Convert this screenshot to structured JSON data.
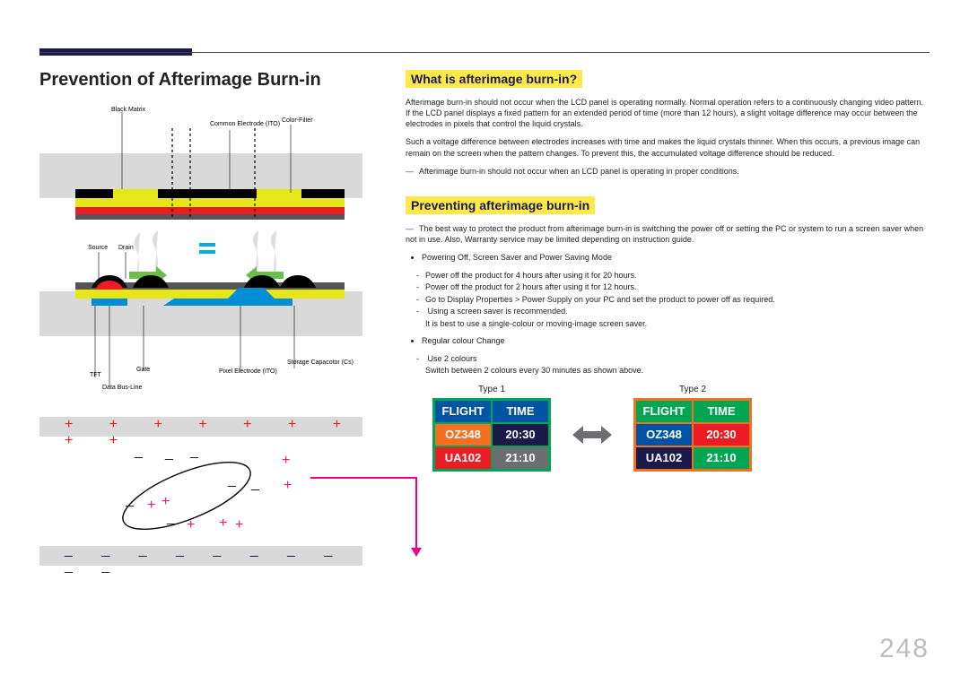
{
  "page_number": "248",
  "title": "Prevention of Afterimage Burn-in",
  "section1": {
    "heading": "What is afterimage burn-in?",
    "para1": "Afterimage burn-in should not occur when the LCD panel is operating normally. Normal operation refers to a continuously changing video pattern. If the LCD panel displays a fixed pattern for an extended period of time (more than 12 hours), a slight voltage difference may occur between the electrodes in pixels that control the liquid crystals.",
    "para2": "Such a voltage difference between electrodes increases with time and makes the liquid crystals thinner. When this occurs, a previous image can remain on the screen when the pattern changes. To prevent this, the accumulated voltage difference should be reduced.",
    "dash1": "Afterimage burn-in should not occur when an LCD panel is operating in proper conditions."
  },
  "section2": {
    "heading": "Preventing afterimage burn-in",
    "dash1": "The best way to protect the product from afterimage burn-in is switching the power off or setting the PC or system to run a screen saver when not in use. Also, Warranty service may be limited depending on instruction guide.",
    "b1": "Powering Off, Screen Saver and Power Saving Mode",
    "b1a": "Power off the product for 4 hours after using it for 20 hours.",
    "b1b": "Power off the product for 2 hours after using it for 12 hours.",
    "b1c": "Go to Display Properties > Power Supply on your PC and set the product to power off as required.",
    "b1d": "Using a screen saver is recommended.",
    "b1d_sub": "It is best to use a single-colour or moving-image screen saver.",
    "b2": "Regular colour Change",
    "b2a": "Use 2 colours",
    "b2a_sub": "Switch between 2 colours every 30 minutes as shown above."
  },
  "tables": {
    "type1_label": "Type 1",
    "type2_label": "Type 2",
    "headers": [
      "FLIGHT",
      "TIME"
    ],
    "rows": [
      [
        "OZ348",
        "20:30"
      ],
      [
        "UA102",
        "21:10"
      ]
    ],
    "type1": {
      "border": "#00a651",
      "cell_colors": [
        [
          "#0054a6",
          "#0054a6"
        ],
        [
          "#f36f21",
          "#1a1a4a"
        ],
        [
          "#ed1c24",
          "#6d6e71"
        ]
      ]
    },
    "type2": {
      "border": "#f36f21",
      "cell_colors": [
        [
          "#00a651",
          "#00a651"
        ],
        [
          "#0054a6",
          "#ed1c24"
        ],
        [
          "#1a1a4a",
          "#00a651"
        ]
      ]
    },
    "arrow_color": "#6d6e71"
  },
  "diagram_labels": {
    "black_matrix": "Black Matrix",
    "common_electrode": "Common Electrode (ITO)",
    "color_filter": "Color-Filter",
    "source": "Source",
    "drain": "Drain",
    "tft": "TFT",
    "gate": "Gate",
    "data_bus": "Data Bus-Line",
    "pixel_electrode": "Pixel Electrode (ITO)",
    "storage": "Storage Capacotor (Cs)"
  },
  "colors": {
    "yellow": "#e6e619",
    "red": "#ed1c24",
    "black": "#000000",
    "darkgrey": "#555555",
    "blue": "#008fd5",
    "grey_band": "#d9d9d9",
    "pink": "#ec008c"
  }
}
